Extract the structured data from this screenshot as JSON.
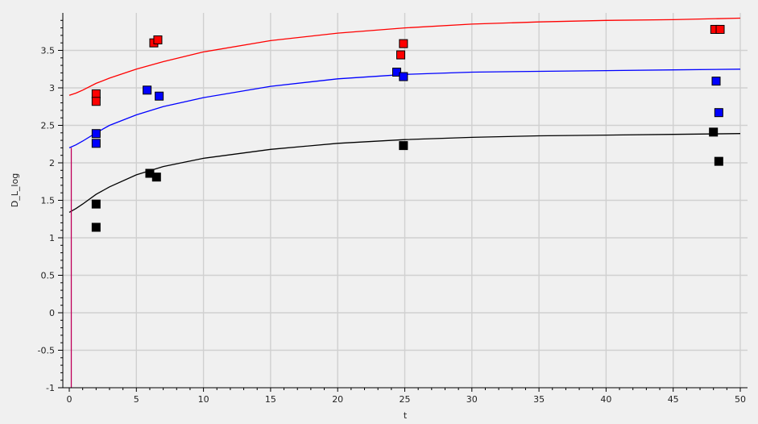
{
  "chart_data": {
    "type": "scatter",
    "xlabel": "t",
    "ylabel": "D_L_log",
    "xlim": [
      0,
      50
    ],
    "ylim": [
      -1,
      4
    ],
    "grid": true,
    "x_ticks": [
      0,
      5,
      10,
      15,
      20,
      25,
      30,
      35,
      40,
      45,
      50
    ],
    "x_tick_labels": [
      "0",
      "5",
      "10",
      "15",
      "20",
      "25",
      "30",
      "35",
      "40",
      "45",
      "50"
    ],
    "y_ticks": [
      -1,
      -0.5,
      0,
      0.5,
      1,
      1.5,
      2,
      2.5,
      3,
      3.5
    ],
    "y_tick_labels": [
      "-1",
      "-0.5",
      "0",
      "0.5",
      "1",
      "1.5",
      "2",
      "2.5",
      "3",
      "3.5"
    ],
    "series": [
      {
        "type": "scatter",
        "color": "#ff0000",
        "points": [
          [
            2,
            2.92
          ],
          [
            2,
            2.82
          ],
          [
            6.3,
            3.6
          ],
          [
            6.6,
            3.64
          ],
          [
            24.7,
            3.44
          ],
          [
            24.9,
            3.59
          ],
          [
            48.1,
            3.78
          ],
          [
            48.5,
            3.78
          ]
        ]
      },
      {
        "type": "scatter",
        "color": "#0000ff",
        "points": [
          [
            2,
            2.39
          ],
          [
            2,
            2.26
          ],
          [
            5.8,
            2.97
          ],
          [
            6.7,
            2.89
          ],
          [
            24.4,
            3.21
          ],
          [
            24.9,
            3.15
          ],
          [
            48.2,
            3.09
          ],
          [
            48.4,
            2.67
          ]
        ]
      },
      {
        "type": "scatter",
        "color": "#000000",
        "points": [
          [
            2,
            1.45
          ],
          [
            2,
            1.14
          ],
          [
            6.0,
            1.86
          ],
          [
            6.5,
            1.81
          ],
          [
            24.9,
            2.23
          ],
          [
            48.0,
            2.41
          ],
          [
            48.4,
            2.02
          ]
        ]
      },
      {
        "type": "line",
        "color": "#ff0000",
        "points": [
          [
            0,
            2.9
          ],
          [
            0.5,
            2.93
          ],
          [
            1,
            2.97
          ],
          [
            2,
            3.06
          ],
          [
            3,
            3.13
          ],
          [
            5,
            3.25
          ],
          [
            7,
            3.35
          ],
          [
            10,
            3.48
          ],
          [
            15,
            3.63
          ],
          [
            20,
            3.73
          ],
          [
            25,
            3.8
          ],
          [
            30,
            3.85
          ],
          [
            35,
            3.88
          ],
          [
            40,
            3.9
          ],
          [
            45,
            3.91
          ],
          [
            50,
            3.93
          ]
        ]
      },
      {
        "type": "line",
        "color": "#0000ff",
        "points": [
          [
            0,
            2.2
          ],
          [
            0.5,
            2.24
          ],
          [
            1,
            2.29
          ],
          [
            2,
            2.4
          ],
          [
            3,
            2.5
          ],
          [
            5,
            2.64
          ],
          [
            7,
            2.75
          ],
          [
            10,
            2.87
          ],
          [
            15,
            3.02
          ],
          [
            20,
            3.12
          ],
          [
            25,
            3.18
          ],
          [
            30,
            3.21
          ],
          [
            35,
            3.22
          ],
          [
            40,
            3.23
          ],
          [
            45,
            3.24
          ],
          [
            50,
            3.25
          ]
        ]
      },
      {
        "type": "line",
        "color": "#000000",
        "points": [
          [
            0,
            1.34
          ],
          [
            0.5,
            1.39
          ],
          [
            1,
            1.45
          ],
          [
            2,
            1.58
          ],
          [
            3,
            1.68
          ],
          [
            5,
            1.84
          ],
          [
            7,
            1.95
          ],
          [
            10,
            2.06
          ],
          [
            15,
            2.18
          ],
          [
            20,
            2.26
          ],
          [
            25,
            2.31
          ],
          [
            30,
            2.34
          ],
          [
            35,
            2.36
          ],
          [
            40,
            2.37
          ],
          [
            45,
            2.38
          ],
          [
            50,
            2.39
          ]
        ]
      },
      {
        "type": "line",
        "color": "#c0005a",
        "points": [
          [
            0.15,
            -1
          ],
          [
            0.15,
            2.2
          ]
        ]
      }
    ]
  }
}
